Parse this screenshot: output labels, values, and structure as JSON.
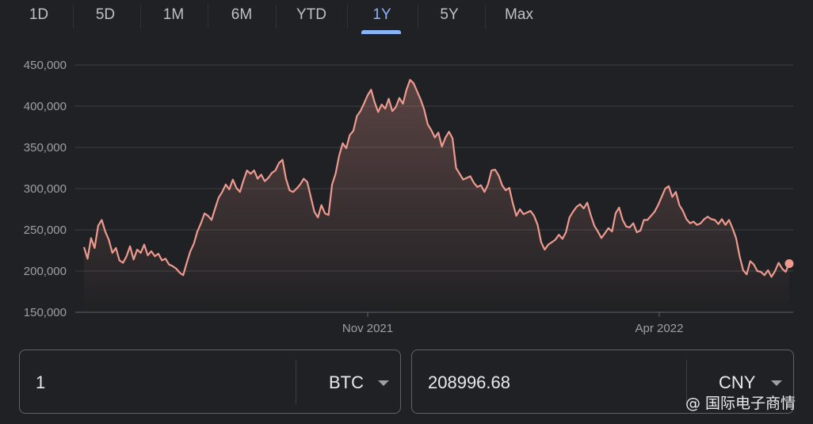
{
  "range_tabs": {
    "items": [
      "1D",
      "5D",
      "1M",
      "6M",
      "YTD",
      "1Y",
      "5Y",
      "Max"
    ],
    "active": "1Y"
  },
  "chart_data": {
    "type": "area",
    "ylim": [
      150000,
      450000
    ],
    "y_ticks": [
      "450,000",
      "400,000",
      "350,000",
      "300,000",
      "250,000",
      "200,000",
      "150,000"
    ],
    "x_ticks": [
      "Nov 2021",
      "Apr 2022"
    ],
    "line_color": "#ee9a8f",
    "grid": true,
    "series": [
      {
        "values": [
          229000,
          215000,
          240000,
          228000,
          255000,
          262000,
          248000,
          238000,
          222000,
          228000,
          213000,
          210000,
          218000,
          230000,
          214000,
          226000,
          222000,
          232000,
          219000,
          224000,
          218000,
          221000,
          213000,
          215000,
          208000,
          206000,
          203000,
          198000,
          195000,
          210000,
          224000,
          233000,
          248000,
          258000,
          270000,
          267000,
          262000,
          276000,
          289000,
          296000,
          305000,
          299000,
          311000,
          301000,
          296000,
          310000,
          322000,
          318000,
          322000,
          312000,
          317000,
          309000,
          313000,
          319000,
          322000,
          331000,
          335000,
          312000,
          298000,
          296000,
          300000,
          305000,
          312000,
          308000,
          290000,
          272000,
          265000,
          280000,
          270000,
          268000,
          305000,
          318000,
          340000,
          355000,
          349000,
          365000,
          370000,
          388000,
          394000,
          403000,
          413000,
          420000,
          405000,
          393000,
          402000,
          397000,
          409000,
          394000,
          399000,
          410000,
          403000,
          420000,
          432000,
          428000,
          418000,
          408000,
          396000,
          378000,
          371000,
          362000,
          368000,
          351000,
          362000,
          369000,
          361000,
          325000,
          318000,
          311000,
          313000,
          315000,
          307000,
          302000,
          304000,
          296000,
          305000,
          322000,
          323000,
          316000,
          304000,
          298000,
          301000,
          282000,
          267000,
          275000,
          269000,
          271000,
          273000,
          267000,
          256000,
          235000,
          226000,
          232000,
          235000,
          238000,
          244000,
          239000,
          247000,
          265000,
          272000,
          278000,
          281000,
          276000,
          283000,
          268000,
          255000,
          248000,
          240000,
          246000,
          252000,
          248000,
          270000,
          277000,
          262000,
          254000,
          253000,
          258000,
          247000,
          249000,
          262000,
          262000,
          267000,
          272000,
          280000,
          290000,
          300000,
          303000,
          290000,
          296000,
          280000,
          273000,
          263000,
          258000,
          260000,
          256000,
          258000,
          263000,
          266000,
          263000,
          262000,
          257000,
          263000,
          256000,
          262000,
          252000,
          240000,
          218000,
          201000,
          196000,
          212000,
          208000,
          200000,
          199000,
          195000,
          201000,
          193000,
          200000,
          210000,
          203000,
          199000,
          208996
        ]
      }
    ]
  },
  "converter": {
    "from_value": "1",
    "from_unit": "BTC",
    "to_value": "208996.68",
    "to_unit": "CNY"
  },
  "watermark": "@ 国际电子商情"
}
